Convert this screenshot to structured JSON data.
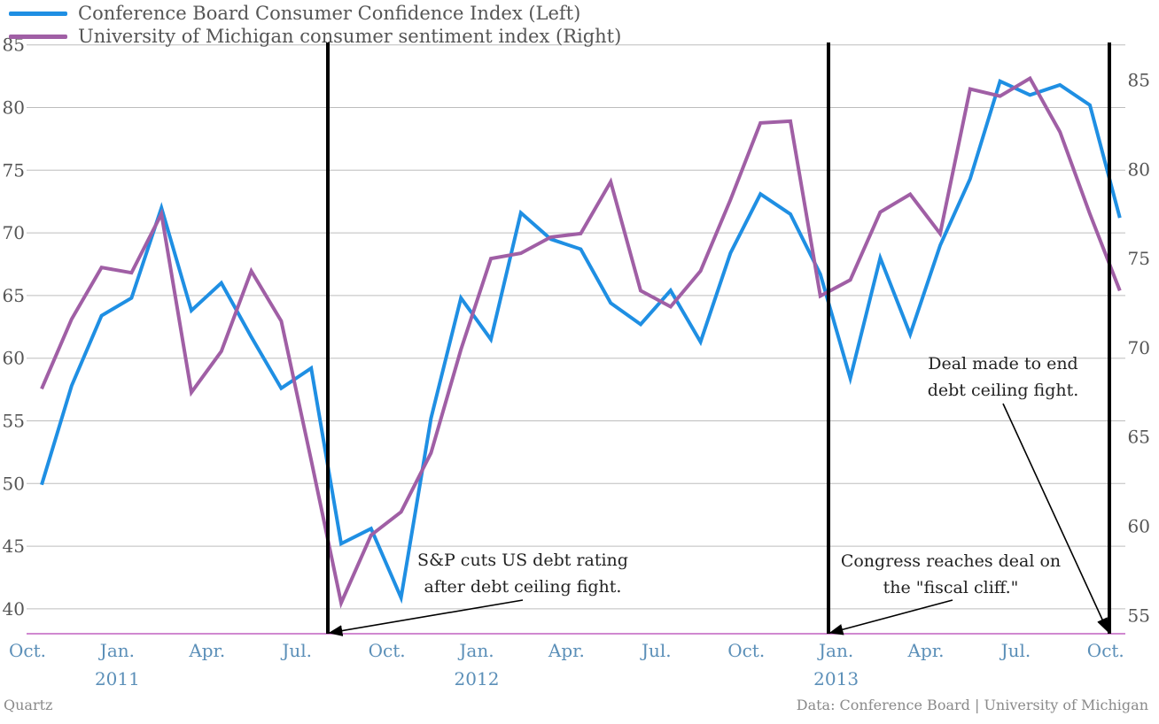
{
  "legend": {
    "items": [
      {
        "label": "Conference Board Consumer Confidence Index (Left)",
        "color": "#1f8fe3"
      },
      {
        "label": "University of Michigan consumer sentiment index  (Right)",
        "color": "#a05fa5"
      }
    ]
  },
  "footer": {
    "source_left": "Quartz",
    "source_right": "Data: Conference Board | University of Michigan"
  },
  "chart_data": {
    "type": "line",
    "x": [
      "Oct. 2010",
      "Nov. 2010",
      "Dec. 2010",
      "Jan. 2011",
      "Feb. 2011",
      "Mar. 2011",
      "Apr. 2011",
      "May 2011",
      "Jun. 2011",
      "Jul. 2011",
      "Aug. 2011",
      "Sep. 2011",
      "Oct. 2011",
      "Nov. 2011",
      "Dec. 2011",
      "Jan. 2012",
      "Feb. 2012",
      "Mar. 2012",
      "Apr. 2012",
      "May 2012",
      "Jun. 2012",
      "Jul. 2012",
      "Aug. 2012",
      "Sep. 2012",
      "Oct. 2012",
      "Nov. 2012",
      "Dec. 2012",
      "Jan. 2013",
      "Feb. 2013",
      "Mar. 2013",
      "Apr. 2013",
      "May 2013",
      "Jun. 2013",
      "Jul. 2013",
      "Aug. 2013",
      "Sep. 2013",
      "Oct. 2013"
    ],
    "x_tick_labels": [
      {
        "index": 0,
        "label": "Oct.",
        "year": ""
      },
      {
        "index": 3,
        "label": "Jan.",
        "year": "2011"
      },
      {
        "index": 6,
        "label": "Apr.",
        "year": ""
      },
      {
        "index": 9,
        "label": "Jul.",
        "year": ""
      },
      {
        "index": 12,
        "label": "Oct.",
        "year": ""
      },
      {
        "index": 15,
        "label": "Jan.",
        "year": "2012"
      },
      {
        "index": 18,
        "label": "Apr.",
        "year": ""
      },
      {
        "index": 21,
        "label": "Jul.",
        "year": ""
      },
      {
        "index": 24,
        "label": "Oct.",
        "year": ""
      },
      {
        "index": 27,
        "label": "Jan.",
        "year": "2013"
      },
      {
        "index": 30,
        "label": "Apr.",
        "year": ""
      },
      {
        "index": 33,
        "label": "Jul.",
        "year": ""
      },
      {
        "index": 36,
        "label": "Oct.",
        "year": ""
      }
    ],
    "y_left": {
      "ticks": [
        40,
        45,
        50,
        55,
        60,
        65,
        70,
        75,
        80,
        85
      ],
      "ylim": [
        38,
        85
      ]
    },
    "y_right": {
      "ticks": [
        55,
        60,
        65,
        70,
        75,
        80,
        85
      ],
      "ylim": [
        54,
        87
      ]
    },
    "series": [
      {
        "name": "Conference Board Consumer Confidence Index (Left)",
        "axis": "left",
        "color": "#1f8fe3",
        "values": [
          49.9,
          57.8,
          63.4,
          64.8,
          72.0,
          63.8,
          66.0,
          61.7,
          57.6,
          59.2,
          45.2,
          46.4,
          40.9,
          55.2,
          64.8,
          61.5,
          71.6,
          69.5,
          68.7,
          64.4,
          62.7,
          65.4,
          61.3,
          68.4,
          73.1,
          71.5,
          66.7,
          58.4,
          68.0,
          61.9,
          69.0,
          74.3,
          82.1,
          81.0,
          81.8,
          80.2,
          71.2
        ]
      },
      {
        "name": "University of Michigan consumer sentiment index  (Right)",
        "axis": "right",
        "color": "#a05fa5",
        "values": [
          67.7,
          71.6,
          74.5,
          74.2,
          77.5,
          67.5,
          69.8,
          74.3,
          71.5,
          63.7,
          55.7,
          59.5,
          60.8,
          64.1,
          69.9,
          75.0,
          75.3,
          76.2,
          76.4,
          79.3,
          73.2,
          72.3,
          74.3,
          78.3,
          82.6,
          82.7,
          72.9,
          73.8,
          77.6,
          78.6,
          76.4,
          84.5,
          84.1,
          85.1,
          82.1,
          77.5,
          73.2
        ]
      }
    ],
    "event_lines": [
      {
        "index": 10
      },
      {
        "index": 27
      },
      {
        "index": 37
      }
    ],
    "annotations": [
      {
        "lines": [
          "S&P cuts US debt rating",
          "after debt ceiling fight."
        ]
      },
      {
        "lines": [
          "Congress reaches deal on",
          "the \"fiscal cliff.\""
        ]
      },
      {
        "lines": [
          "Deal made to end",
          "debt ceiling fight."
        ]
      }
    ],
    "grid": true
  }
}
